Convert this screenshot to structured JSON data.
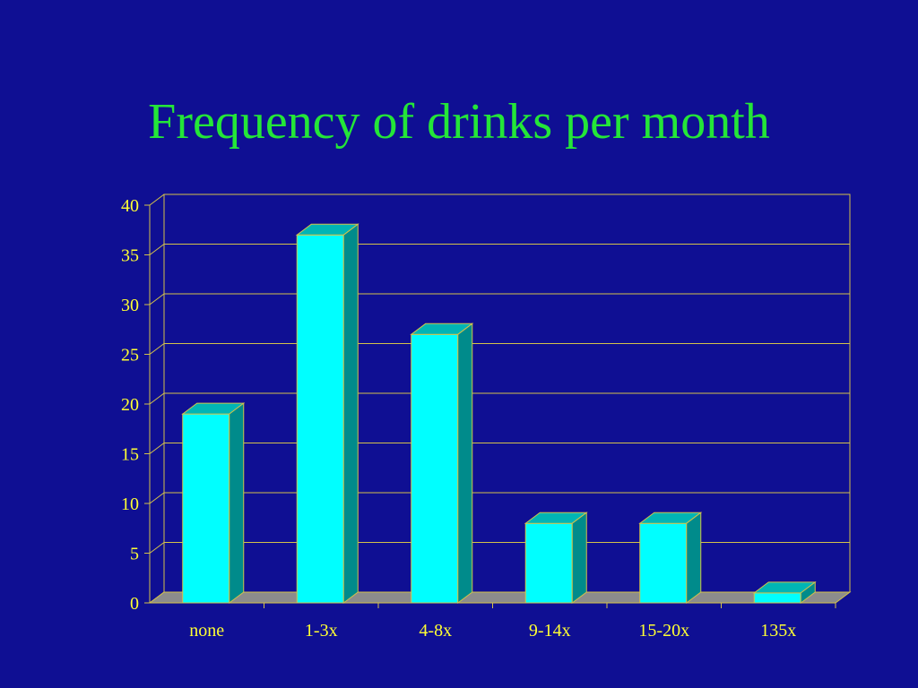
{
  "slide": {
    "title": "Frequency of drinks per month"
  },
  "colors": {
    "background": "#0f0f93",
    "title": "#24e638",
    "axis_text": "#ffff33",
    "gridline": "#d4c24a",
    "bar_front": "#00ffff",
    "bar_top": "#00b5b5",
    "bar_side": "#008b8b",
    "floor": "#8c8c8c"
  },
  "chart_data": {
    "type": "bar",
    "categories": [
      "none",
      "1-3x",
      "4-8x",
      "9-14x",
      "15-20x",
      "135x"
    ],
    "values": [
      19,
      37,
      27,
      8,
      8,
      1
    ],
    "ylim": [
      0,
      40
    ],
    "yticks": [
      0,
      5,
      10,
      15,
      20,
      25,
      30,
      35,
      40
    ],
    "xlabel": "",
    "ylabel": "",
    "grid": true,
    "legend": "none",
    "style": "3d-column"
  }
}
